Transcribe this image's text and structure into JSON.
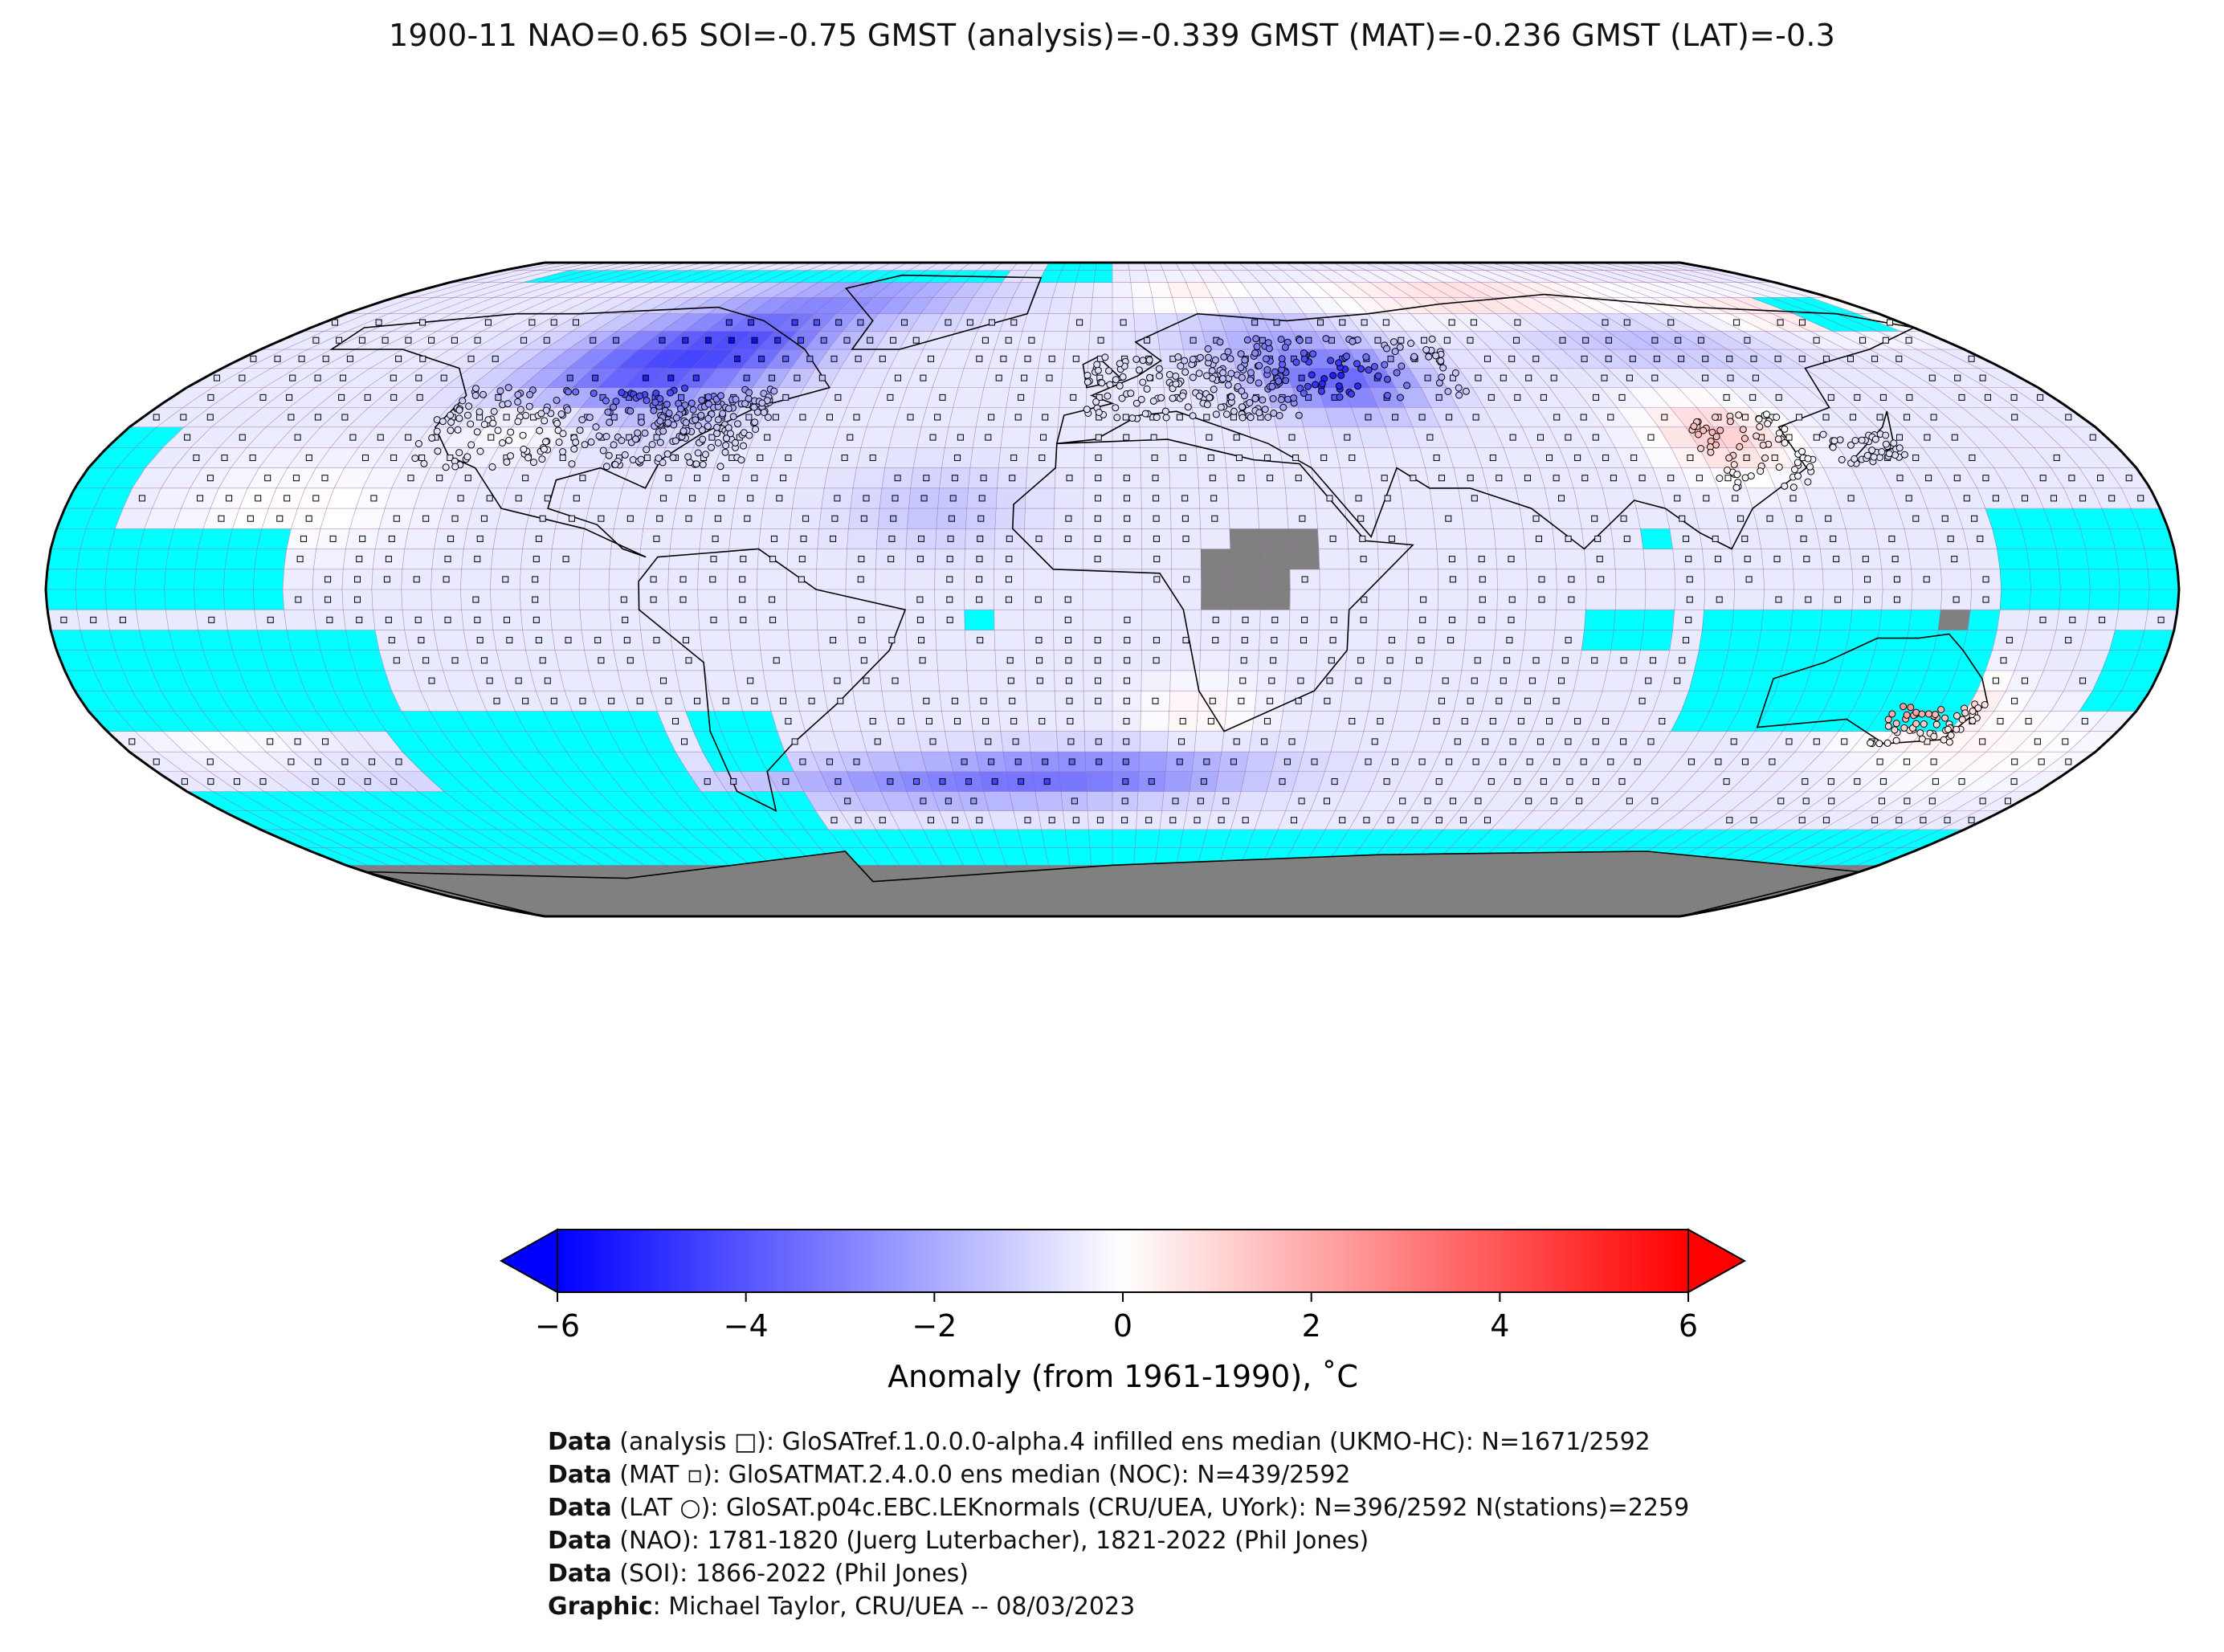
{
  "title": "1900-11 NAO=0.65 SOI=-0.75 GMST (analysis)=-0.339 GMST (MAT)=-0.236 GMST (LAT)=-0.3",
  "colors": {
    "no_data": "#00ffff",
    "masked_land": "#808080",
    "grid_line": "#9a5fa8",
    "coastline": "#000000",
    "cmap_min": "#0000ff",
    "cmap_mid": "#ffffff",
    "cmap_max": "#ff0000"
  },
  "colorbar": {
    "ticks": [
      "−6",
      "−4",
      "−2",
      "0",
      "2",
      "4",
      "6"
    ],
    "tick_values": [
      -6,
      -4,
      -2,
      0,
      2,
      4,
      6
    ],
    "range": [
      -6,
      6
    ],
    "label": "Anomaly (from 1961-1990), ˚C",
    "extend": "both"
  },
  "footer": [
    {
      "bold": "Data",
      "text": " (analysis □): GloSATref.1.0.0.0-alpha.4 infilled ens median (UKMO-HC): N=1671/2592"
    },
    {
      "bold": "Data",
      "text": " (MAT ▫): GloSATMAT.2.4.0.0 ens median (NOC): N=439/2592"
    },
    {
      "bold": "Data",
      "text": " (LAT ○): GloSAT.p04c.EBC.LEKnormals (CRU/UEA, UYork): N=396/2592 N(stations)=2259"
    },
    {
      "bold": "Data",
      "text": " (NAO): 1781-1820 (Juerg Luterbacher), 1821-2022 (Phil Jones)"
    },
    {
      "bold": "Data",
      "text": " (SOI): 1866-2022 (Phil Jones)"
    },
    {
      "bold": "Graphic",
      "text": ": Michael Taylor, CRU/UEA -- 08/03/2023"
    }
  ]
}
